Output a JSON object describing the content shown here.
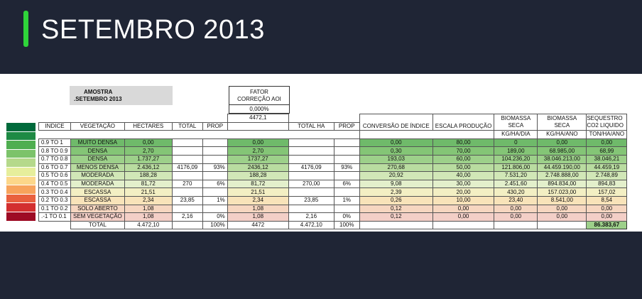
{
  "slide": {
    "title": "SETEMBRO 2013"
  },
  "top_boxes": {
    "amostra": "AMOSTRA",
    "amostra_date": ".SETEMBRO 2013",
    "fator": "FATOR",
    "fator2": "CORREÇÃO AOI",
    "fator_pct": "0,000%",
    "fator_val": "4472,1"
  },
  "headers": {
    "indice": "INDICE",
    "vegetacao": "VEGETAÇÃO",
    "hectares": "HECTARES",
    "total": "TOTAL",
    "prop": "PROP",
    "total_ha": "TOTAL HA",
    "prop2": "PROP",
    "conversao": "CONVERSÃO DE ÍNDICE",
    "escala": "ESCALA PRODUÇÃO",
    "bio_dia_1": "BIOMASSA",
    "bio_dia_2": "SECA",
    "bio_dia_3": "KG/HA/DIA",
    "bio_ano_1": "BIOMASSA",
    "bio_ano_2": "SECA",
    "bio_ano_3": "KG/HA/ANO",
    "seq_1": "SEQUESTRO",
    "seq_2": "CO2 LIQUIDO",
    "seq_3": "TON/HA/ANO"
  },
  "colors": {
    "dark_bg": "#1f2535",
    "accent": "#2fd43a",
    "swatches": [
      "#006a3b",
      "#1e8a44",
      "#4fae50",
      "#7cc36a",
      "#b5d98b",
      "#e6ee9c",
      "#fcd78a",
      "#f7a35c",
      "#e9603e",
      "#d32f2f",
      "#9e0b24"
    ],
    "row_fills": [
      "#6fba6a",
      "#84c576",
      "#9dd08a",
      "#b9dca0",
      "#d1e7b7",
      "#e3efcb",
      "#f3efc3",
      "#f8e3b9",
      "#f6d6c0",
      "#f3cfc7"
    ]
  },
  "rows": [
    {
      "indice": "0.9 TO 1",
      "veg": "MUITO DENSA",
      "ha": "0,00",
      "total": "",
      "prop": "",
      "fator": "0,00",
      "total_ha": "",
      "prop2": "",
      "conv": "0,00",
      "escala": "80,00",
      "bio_dia": "0",
      "bio_ano": "0,00",
      "seq": "0,00"
    },
    {
      "indice": "0.8 TO 0.9",
      "veg": "DENSA",
      "ha": "2,70",
      "total": "",
      "prop": "",
      "fator": "2,70",
      "total_ha": "",
      "prop2": "",
      "conv": "0,30",
      "escala": "70,00",
      "bio_dia": "189,00",
      "bio_ano": "68.985,00",
      "seq": "68,99"
    },
    {
      "indice": "0.7 TO 0.8",
      "veg": "DENSA",
      "ha": "1.737,27",
      "total": "",
      "prop": "",
      "fator": "1737,27",
      "total_ha": "",
      "prop2": "",
      "conv": "193,03",
      "escala": "60,00",
      "bio_dia": "104.236,20",
      "bio_ano": "38.046.213,00",
      "seq": "38.046,21"
    },
    {
      "indice": "0.6 TO 0.7",
      "veg": "MENOS DENSA",
      "ha": "2.436,12",
      "total": "4176,09",
      "prop": "93%",
      "fator": "2436,12",
      "total_ha": "4176,09",
      "prop2": "93%",
      "conv": "270,68",
      "escala": "50,00",
      "bio_dia": "121.806,00",
      "bio_ano": "44.459.190,00",
      "seq": "44.459,19"
    },
    {
      "indice": "0.5 TO 0.6",
      "veg": "MODERADA",
      "ha": "188,28",
      "total": "",
      "prop": "",
      "fator": "188,28",
      "total_ha": "",
      "prop2": "",
      "conv": "20,92",
      "escala": "40,00",
      "bio_dia": "7.531,20",
      "bio_ano": "2.748.888,00",
      "seq": "2.748,89"
    },
    {
      "indice": "0.4 TO 0.5",
      "veg": "MODERADA",
      "ha": "81,72",
      "total": "270",
      "prop": "6%",
      "fator": "81,72",
      "total_ha": "270,00",
      "prop2": "6%",
      "conv": "9,08",
      "escala": "30,00",
      "bio_dia": "2.451,60",
      "bio_ano": "894.834,00",
      "seq": "894,83"
    },
    {
      "indice": "0.3 TO 0.4",
      "veg": "ESCASSA",
      "ha": "21,51",
      "total": "",
      "prop": "",
      "fator": "21,51",
      "total_ha": "",
      "prop2": "",
      "conv": "2,39",
      "escala": "20,00",
      "bio_dia": "430,20",
      "bio_ano": "157.023,00",
      "seq": "157,02"
    },
    {
      "indice": "0.2 TO 0.3",
      "veg": "ESCASSA",
      "ha": "2,34",
      "total": "23,85",
      "prop": "1%",
      "fator": "2,34",
      "total_ha": "23,85",
      "prop2": "1%",
      "conv": "0,26",
      "escala": "10,00",
      "bio_dia": "23,40",
      "bio_ano": "8.541,00",
      "seq": "8,54"
    },
    {
      "indice": "0.1 TO 0.2",
      "veg": "SOLO ABERTO",
      "ha": "1,08",
      "total": "",
      "prop": "",
      "fator": "1,08",
      "total_ha": "",
      "prop2": "",
      "conv": "0,12",
      "escala": "0,00",
      "bio_dia": "0,00",
      "bio_ano": "0,00",
      "seq": "0,00"
    },
    {
      "indice": ".-1 TO 0.1",
      "veg": "SEM VEGETAÇÃO",
      "ha": "1,08",
      "total": "2,16",
      "prop": "0%",
      "fator": "1,08",
      "total_ha": "2,16",
      "prop2": "0%",
      "conv": "0,12",
      "escala": "0,00",
      "bio_dia": "0,00",
      "bio_ano": "0,00",
      "seq": "0,00"
    }
  ],
  "totals": {
    "label": "TOTAL",
    "ha": "4.472,10",
    "prop": "100%",
    "fator": "4472",
    "total_ha": "4.472,10",
    "prop2": "100%",
    "seq": "86.383,67"
  }
}
